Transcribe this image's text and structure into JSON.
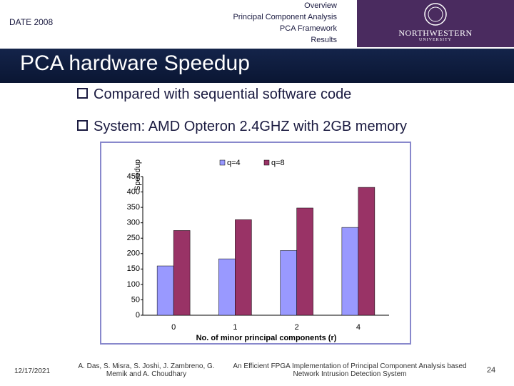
{
  "header": {
    "date": "DATE 2008",
    "nav": [
      "Overview",
      "Principal Component Analysis",
      "PCA Framework",
      "Results"
    ],
    "logo": [
      "NORTHWESTERN",
      "UNIVERSITY"
    ]
  },
  "slide": {
    "title": "PCA hardware Speedup",
    "bullets": [
      "Compared with sequential software code",
      "System: AMD Opteron 2.4GHZ with 2GB memory"
    ]
  },
  "chart_data": {
    "type": "bar",
    "categories": [
      "0",
      "1",
      "2",
      "4"
    ],
    "series": [
      {
        "name": "q=4",
        "color": "#9999ff",
        "values": [
          160,
          183,
          210,
          285
        ]
      },
      {
        "name": "q=8",
        "color": "#993366",
        "values": [
          275,
          310,
          348,
          415
        ]
      }
    ],
    "ylim": [
      0,
      450
    ],
    "yticks": [
      0,
      50,
      100,
      150,
      200,
      250,
      300,
      350,
      400,
      450
    ],
    "y_label": "Speedup",
    "x_label": "No. of minor principal components (r)",
    "legend": "top"
  },
  "footer": {
    "date": "12/17/2021",
    "authors": "A. Das, S. Misra, S. Joshi, J. Zambreno, G. Memik and A. Choudhary",
    "paper": "An Efficient FPGA Implementation of Principal Component Analysis based Network Intrusion Detection System",
    "page": "24"
  }
}
